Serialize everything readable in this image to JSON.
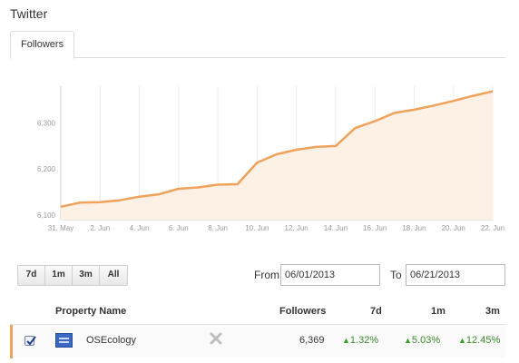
{
  "app": {
    "title": "Twitter"
  },
  "tabs": [
    {
      "label": "Followers",
      "active": true
    }
  ],
  "chart_data": {
    "type": "area",
    "title": "",
    "xlabel": "",
    "ylabel": "",
    "x": [
      "2013-05-31",
      "2013-06-01",
      "2013-06-02",
      "2013-06-03",
      "2013-06-04",
      "2013-06-05",
      "2013-06-06",
      "2013-06-07",
      "2013-06-08",
      "2013-06-09",
      "2013-06-10",
      "2013-06-11",
      "2013-06-12",
      "2013-06-13",
      "2013-06-14",
      "2013-06-15",
      "2013-06-16",
      "2013-06-17",
      "2013-06-18",
      "2013-06-19",
      "2013-06-20",
      "2013-06-21",
      "2013-06-22"
    ],
    "series": [
      {
        "values": [
          6118,
          6127,
          6128,
          6132,
          6140,
          6145,
          6157,
          6160,
          6166,
          6167,
          6214,
          6232,
          6242,
          6248,
          6250,
          6289,
          6304,
          6322,
          6329,
          6338,
          6348,
          6359,
          6369
        ]
      }
    ],
    "xtick_labels": [
      "31. May",
      "2. Jun",
      "4. Jun",
      "6. Jun",
      "8. Jun",
      "10. Jun",
      "12. Jun",
      "14. Jun",
      "16. Jun",
      "18. Jun",
      "20. Jun",
      "22. Jun"
    ],
    "yticks": [
      6100,
      6200,
      6300
    ],
    "ytick_labels": [
      "6,100",
      "6,200",
      "6,300"
    ],
    "ylim": [
      6090,
      6380
    ],
    "grid": "vertical",
    "legend": "none",
    "colors": {
      "line": "#f0a15a",
      "fill": "#fdf1e6"
    }
  },
  "ranges": [
    "7d",
    "1m",
    "3m",
    "All"
  ],
  "date_range": {
    "from_label": "From",
    "from_value": "06/01/2013",
    "to_label": "To",
    "to_value": "06/21/2013"
  },
  "table": {
    "headers": {
      "property": "Property Name",
      "followers": "Followers",
      "d7": "7d",
      "m1": "1m",
      "m3": "3m"
    },
    "rows": [
      {
        "checked": true,
        "name": "OSEcology",
        "followers": "6,369",
        "d7": "1.32%",
        "m1": "5.03%",
        "m3": "12.45%"
      }
    ]
  }
}
